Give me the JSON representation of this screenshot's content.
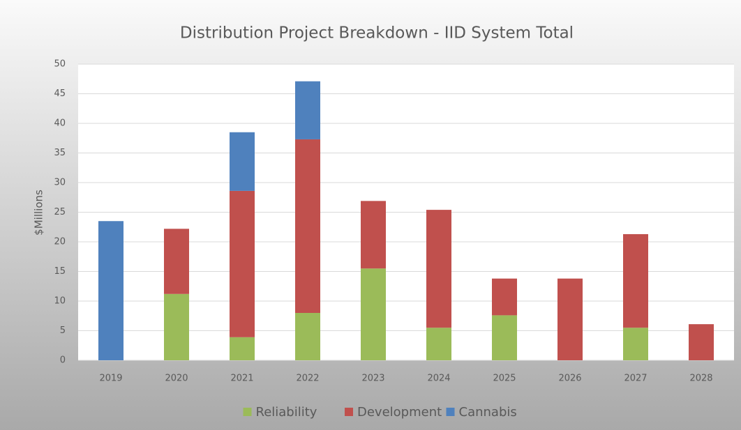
{
  "chart_data": {
    "type": "stacked_bar",
    "title": "Distribution Project Breakdown - IID System Total",
    "y_label": "$Millions",
    "categories": [
      "2019",
      "2020",
      "2021",
      "2022",
      "2023",
      "2024",
      "2025",
      "2026",
      "2027",
      "2028"
    ],
    "series": [
      {
        "name": "Reliability",
        "color": "#9bbb59",
        "values": [
          0,
          11.2,
          3.9,
          8.0,
          15.5,
          5.5,
          7.6,
          0,
          5.5,
          0
        ]
      },
      {
        "name": "Development",
        "color": "#c0504d",
        "values": [
          0,
          11.0,
          24.7,
          29.3,
          11.4,
          19.9,
          6.2,
          13.8,
          15.8,
          6.1
        ]
      },
      {
        "name": "Cannabis",
        "color": "#4f81bd",
        "values": [
          23.5,
          0,
          9.9,
          9.8,
          0,
          0,
          0,
          0,
          0,
          0
        ]
      }
    ],
    "ylim": [
      0,
      50
    ],
    "yticks": [
      0,
      5,
      10,
      15,
      20,
      25,
      30,
      35,
      40,
      45,
      50
    ],
    "grid": true,
    "legend": "bottom"
  }
}
